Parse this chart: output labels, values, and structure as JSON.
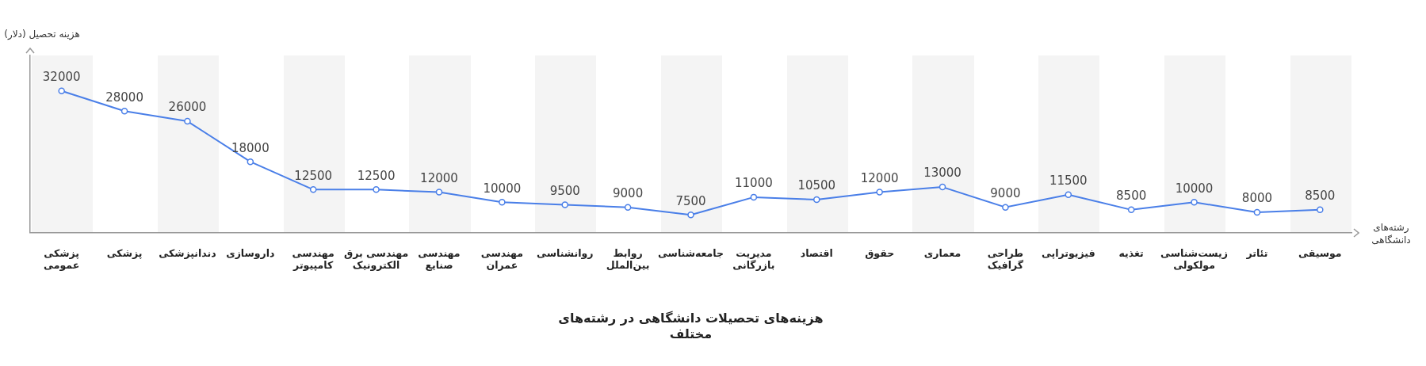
{
  "chart_data": {
    "type": "line",
    "title": "هزینه‌های تحصیلات دانشگاهی در رشته‌های مختلف",
    "ylabel": "هزینه تحصیل (دلار)",
    "xlabel": "رشته‌های دانشگاهی",
    "categories": [
      "پزشکی عمومی",
      "پزشکی",
      "دندانپزشکی",
      "داروسازی",
      "مهندسی کامپیوتر",
      "مهندسی برق الکترونیک",
      "مهندسی صنایع",
      "مهندسی عمران",
      "روانشناسی",
      "روابط بین‌الملل",
      "جامعه‌شناسی",
      "مدیریت بازرگانی",
      "اقتصاد",
      "حقوق",
      "معماری",
      "طراحی گرافیک",
      "فیزیوتراپی",
      "تغذیه",
      "زیست‌شناسی مولکولی",
      "تئاتر",
      "موسیقی"
    ],
    "values": [
      32000,
      28000,
      26000,
      18000,
      12500,
      12500,
      12000,
      10000,
      9500,
      9000,
      7500,
      11000,
      10500,
      12000,
      13000,
      9000,
      11500,
      8500,
      10000,
      8000,
      8500
    ],
    "color": "#4a7fe8",
    "ylim": [
      4000,
      39000
    ],
    "tick_labels": "x",
    "data_labels": true,
    "marker": "circle",
    "line_style": "solid",
    "grid": false,
    "legend": false
  }
}
